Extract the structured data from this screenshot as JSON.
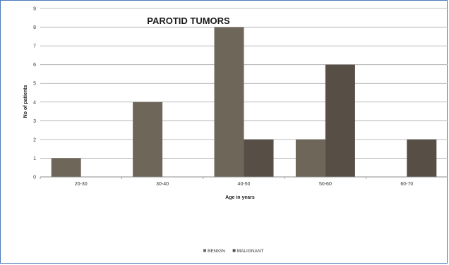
{
  "chart_data": {
    "type": "bar",
    "title": "PAROTID TUMORS",
    "xlabel": "Age in years",
    "ylabel": "No of patients",
    "categories": [
      "20-30",
      "30-40",
      "40-50",
      "50-60",
      "60-70"
    ],
    "series": [
      {
        "name": "BENIGN",
        "values": [
          1,
          4,
          8,
          2,
          0
        ],
        "color": "#6e6659"
      },
      {
        "name": "MALIGNANT",
        "values": [
          0,
          0,
          2,
          6,
          2
        ],
        "color": "#574e45"
      }
    ],
    "ylim": [
      0,
      9
    ],
    "yticks": [
      "0",
      "1",
      "2",
      "3",
      "4",
      "5",
      "6",
      "7",
      "8",
      "9"
    ],
    "grid": true,
    "legend_position": "bottom"
  }
}
